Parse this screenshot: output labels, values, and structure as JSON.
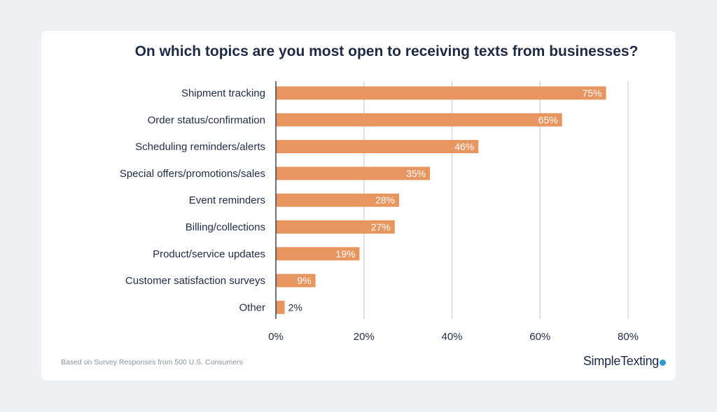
{
  "chart_data": {
    "type": "bar",
    "orientation": "horizontal",
    "title": "On which topics are you most open to receiving texts from businesses?",
    "categories": [
      "Shipment tracking",
      "Order status/confirmation",
      "Scheduling reminders/alerts",
      "Special offers/promotions/sales",
      "Event reminders",
      "Billing/collections",
      "Product/service updates",
      "Customer satisfaction surveys",
      "Other"
    ],
    "values": [
      75,
      65,
      46,
      35,
      28,
      27,
      19,
      9,
      2
    ],
    "data_labels": [
      "75%",
      "65%",
      "46%",
      "35%",
      "28%",
      "27%",
      "19%",
      "9%",
      "2%"
    ],
    "xlim": [
      0,
      80
    ],
    "xticks": [
      0,
      20,
      40,
      60,
      80
    ],
    "xtick_labels": [
      "0%",
      "20%",
      "40%",
      "60%",
      "80%"
    ],
    "grid": true,
    "bar_color": "#e8965f",
    "legend": "none"
  },
  "footnote": "Based on Survey Responses from 500 U.S. Consumers",
  "brand": {
    "name": "SimpleTexting",
    "icon": "chat-bubble-icon",
    "accent": "#2f9bd6"
  }
}
